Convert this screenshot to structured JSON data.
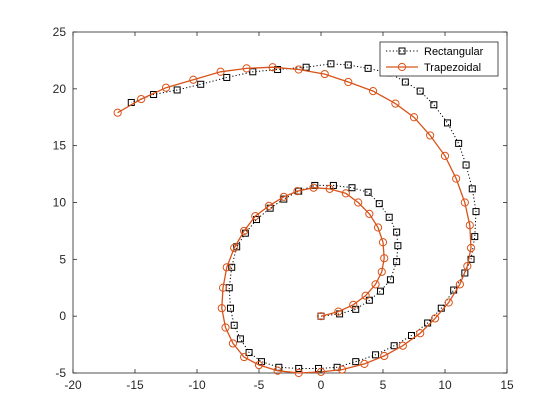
{
  "chart_data": {
    "type": "line",
    "title": "",
    "xlabel": "",
    "ylabel": "",
    "xlim": [
      -20,
      15
    ],
    "ylim": [
      -5,
      25
    ],
    "xticks": [
      -20,
      -15,
      -10,
      -5,
      0,
      5,
      10,
      15
    ],
    "yticks": [
      -5,
      0,
      5,
      10,
      15,
      20,
      25
    ],
    "grid": false,
    "box": true,
    "legend_location": "top-right",
    "series": [
      {
        "name": "Rectangular",
        "color": "#000000",
        "line_style": "dotted",
        "marker": "square",
        "x": [
          0.0,
          1.5,
          2.8,
          3.9,
          4.8,
          5.6,
          6.1,
          6.2,
          6.1,
          5.5,
          4.7,
          3.8,
          2.5,
          1.0,
          -0.5,
          -1.8,
          -3.0,
          -4.1,
          -5.2,
          -6.1,
          -6.8,
          -7.2,
          -7.4,
          -7.3,
          -7.0,
          -6.5,
          -5.8,
          -4.8,
          -3.4,
          -1.8,
          -0.2,
          1.3,
          2.8,
          4.4,
          5.9,
          7.3,
          8.6,
          9.7,
          10.7,
          11.6,
          12.1,
          12.4,
          12.5,
          12.2,
          11.7,
          11.1,
          10.2,
          9.1,
          8.0,
          6.8,
          5.5,
          3.8,
          2.2,
          0.8,
          -1.2,
          -3.5,
          -5.5,
          -7.6,
          -9.7,
          -11.6,
          -13.5,
          -15.3
        ],
        "y": [
          0.0,
          0.2,
          0.6,
          1.4,
          2.2,
          3.2,
          4.8,
          6.2,
          7.4,
          8.7,
          9.9,
          10.9,
          11.3,
          11.5,
          11.5,
          11.0,
          10.3,
          9.5,
          8.5,
          7.3,
          6.1,
          4.3,
          2.5,
          0.7,
          -0.8,
          -2.0,
          -3.2,
          -4.0,
          -4.5,
          -4.6,
          -4.6,
          -4.5,
          -4.0,
          -3.4,
          -2.6,
          -1.7,
          -0.6,
          0.7,
          2.3,
          3.8,
          5.0,
          7.0,
          9.2,
          11.2,
          13.3,
          15.2,
          17.0,
          18.6,
          19.8,
          20.6,
          21.4,
          21.8,
          22.1,
          22.2,
          21.9,
          21.7,
          21.5,
          21.0,
          20.4,
          19.9,
          19.5,
          18.8
        ]
      },
      {
        "name": "Trapezoidal",
        "color": "#D95319",
        "line_style": "solid",
        "marker": "circle",
        "x": [
          0.0,
          1.4,
          2.6,
          3.6,
          4.4,
          4.9,
          5.1,
          5.0,
          4.6,
          3.9,
          3.0,
          2.0,
          0.7,
          -0.6,
          -1.9,
          -3.0,
          -4.2,
          -5.3,
          -6.2,
          -7.0,
          -7.6,
          -7.9,
          -8.0,
          -7.7,
          -7.1,
          -6.2,
          -5.0,
          -3.5,
          -1.8,
          0.0,
          1.7,
          3.5,
          5.1,
          6.6,
          8.0,
          9.2,
          10.3,
          11.2,
          11.8,
          12.1,
          12.0,
          11.6,
          10.9,
          10.0,
          8.8,
          7.5,
          6.0,
          4.2,
          2.2,
          0.3,
          -1.8,
          -3.9,
          -6.0,
          -8.1,
          -10.3,
          -12.5,
          -14.5,
          -16.4
        ],
        "y": [
          0.0,
          0.4,
          1.0,
          1.8,
          2.8,
          3.9,
          5.1,
          6.5,
          7.8,
          9.0,
          10.0,
          10.8,
          11.2,
          11.3,
          11.0,
          10.5,
          9.7,
          8.8,
          7.5,
          6.0,
          4.3,
          2.5,
          0.7,
          -1.0,
          -2.4,
          -3.6,
          -4.3,
          -4.8,
          -5.0,
          -4.9,
          -4.7,
          -4.2,
          -3.5,
          -2.6,
          -1.5,
          -0.2,
          1.2,
          2.8,
          4.4,
          6.0,
          8.0,
          10.0,
          12.1,
          14.1,
          15.9,
          17.5,
          18.7,
          19.8,
          20.6,
          21.3,
          21.7,
          21.9,
          21.8,
          21.5,
          20.8,
          20.1,
          19.1,
          17.9
        ]
      }
    ]
  }
}
